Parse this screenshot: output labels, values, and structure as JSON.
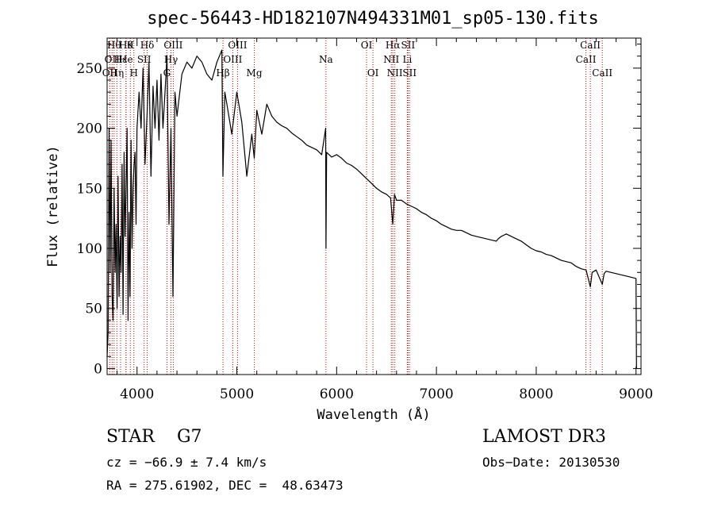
{
  "chart_data": {
    "type": "line",
    "title": "spec-56443-HD182107N494331M01_sp05-130.fits",
    "xlabel": "Wavelength (Å)",
    "ylabel": "Flux (relative)",
    "xlim": [
      3700,
      9050
    ],
    "ylim": [
      -5,
      275
    ],
    "xticks": [
      4000,
      5000,
      6000,
      7000,
      8000,
      9000
    ],
    "yticks": [
      0,
      50,
      100,
      150,
      200,
      250
    ],
    "line_color": "#000000",
    "marker_color": "#cc0000",
    "series": [
      {
        "name": "flux",
        "x": [
          3700,
          3710,
          3720,
          3730,
          3740,
          3750,
          3760,
          3770,
          3780,
          3790,
          3800,
          3810,
          3820,
          3830,
          3840,
          3850,
          3860,
          3870,
          3880,
          3890,
          3900,
          3910,
          3920,
          3930,
          3940,
          3950,
          3960,
          3970,
          3980,
          3990,
          4000,
          4020,
          4040,
          4060,
          4080,
          4100,
          4120,
          4140,
          4160,
          4180,
          4200,
          4220,
          4240,
          4260,
          4280,
          4300,
          4320,
          4340,
          4360,
          4380,
          4400,
          4450,
          4500,
          4550,
          4600,
          4650,
          4700,
          4750,
          4800,
          4850,
          4861,
          4880,
          4900,
          4950,
          5000,
          5050,
          5100,
          5150,
          5175,
          5200,
          5250,
          5300,
          5350,
          5400,
          5450,
          5500,
          5550,
          5600,
          5650,
          5700,
          5750,
          5800,
          5850,
          5890,
          5893,
          5900,
          5950,
          6000,
          6050,
          6100,
          6150,
          6200,
          6250,
          6300,
          6350,
          6400,
          6450,
          6500,
          6540,
          6563,
          6580,
          6600,
          6650,
          6700,
          6750,
          6800,
          6850,
          6900,
          6950,
          7000,
          7050,
          7100,
          7150,
          7200,
          7250,
          7300,
          7350,
          7400,
          7450,
          7500,
          7550,
          7600,
          7620,
          7650,
          7700,
          7750,
          7800,
          7850,
          7900,
          7950,
          8000,
          8050,
          8100,
          8150,
          8200,
          8250,
          8300,
          8350,
          8400,
          8450,
          8500,
          8542,
          8560,
          8600,
          8662,
          8680,
          8700,
          8750,
          8800,
          8850,
          8900,
          8950,
          9000,
          9005
        ],
        "y": [
          10,
          30,
          200,
          80,
          190,
          60,
          40,
          150,
          80,
          120,
          50,
          160,
          60,
          110,
          80,
          170,
          45,
          180,
          110,
          150,
          200,
          40,
          130,
          60,
          190,
          100,
          150,
          170,
          180,
          120,
          200,
          230,
          200,
          250,
          170,
          210,
          255,
          160,
          235,
          200,
          240,
          190,
          245,
          200,
          230,
          260,
          120,
          200,
          60,
          230,
          210,
          245,
          255,
          250,
          260,
          255,
          245,
          240,
          255,
          265,
          160,
          230,
          220,
          195,
          230,
          205,
          160,
          195,
          175,
          215,
          195,
          220,
          210,
          205,
          202,
          200,
          196,
          193,
          190,
          186,
          184,
          182,
          178,
          200,
          100,
          180,
          176,
          178,
          175,
          171,
          169,
          166,
          162,
          158,
          154,
          150,
          147,
          145,
          142,
          120,
          145,
          140,
          140,
          137,
          135,
          133,
          130,
          128,
          125,
          123,
          120,
          118,
          116,
          115,
          115,
          113,
          111,
          110,
          109,
          108,
          107,
          106,
          108,
          110,
          112,
          110,
          108,
          106,
          103,
          100,
          98,
          97,
          95,
          94,
          92,
          90,
          89,
          88,
          85,
          83,
          82,
          68,
          80,
          82,
          70,
          79,
          81,
          80,
          79,
          78,
          77,
          76,
          75,
          0
        ]
      }
    ],
    "line_markers": [
      {
        "x": 3727,
        "label": "OII",
        "row": 2
      },
      {
        "x": 3750,
        "label": "OII",
        "row": 1
      },
      {
        "x": 3770,
        "label": "Hθ",
        "row": 0
      },
      {
        "x": 3798,
        "label": "Hη",
        "row": 2
      },
      {
        "x": 3835,
        "label": "Hε",
        "row": 1
      },
      {
        "x": 3889,
        "label": "He",
        "row": 1
      },
      {
        "x": 3890,
        "label": "Hθ",
        "row": 0
      },
      {
        "x": 3933,
        "label": "K",
        "row": 0
      },
      {
        "x": 3968,
        "label": "H",
        "row": 2
      },
      {
        "x": 4071,
        "label": "SII",
        "row": 1
      },
      {
        "x": 4102,
        "label": "Hδ",
        "row": 0
      },
      {
        "x": 4300,
        "label": "G",
        "row": 2
      },
      {
        "x": 4340,
        "label": "Hγ",
        "row": 1
      },
      {
        "x": 4363,
        "label": "OIII",
        "row": 0
      },
      {
        "x": 4861,
        "label": "Hβ",
        "row": 2
      },
      {
        "x": 4959,
        "label": "OIII",
        "row": 1
      },
      {
        "x": 5007,
        "label": "OIII",
        "row": 0
      },
      {
        "x": 5175,
        "label": "Mg",
        "row": 2
      },
      {
        "x": 5893,
        "label": "Na",
        "row": 1
      },
      {
        "x": 6300,
        "label": "OI",
        "row": 0
      },
      {
        "x": 6364,
        "label": "OI",
        "row": 2
      },
      {
        "x": 6548,
        "label": "NII",
        "row": 1
      },
      {
        "x": 6563,
        "label": "Hα",
        "row": 0
      },
      {
        "x": 6583,
        "label": "NII",
        "row": 2
      },
      {
        "x": 6708,
        "label": "Li",
        "row": 1
      },
      {
        "x": 6716,
        "label": "SII",
        "row": 0
      },
      {
        "x": 6731,
        "label": "SII",
        "row": 2
      },
      {
        "x": 8498,
        "label": "CaII",
        "row": 1
      },
      {
        "x": 8542,
        "label": "CaII",
        "row": 0
      },
      {
        "x": 8662,
        "label": "CaII",
        "row": 2
      }
    ]
  },
  "info": {
    "object_class": "STAR",
    "subclass": "G7",
    "survey": "LAMOST DR3",
    "redshift_line": "cz = −66.9 ± 7.4 km/s",
    "obs_date": "Obs−Date: 20130530",
    "coords": "RA = 275.61902, DEC =  48.63473"
  }
}
